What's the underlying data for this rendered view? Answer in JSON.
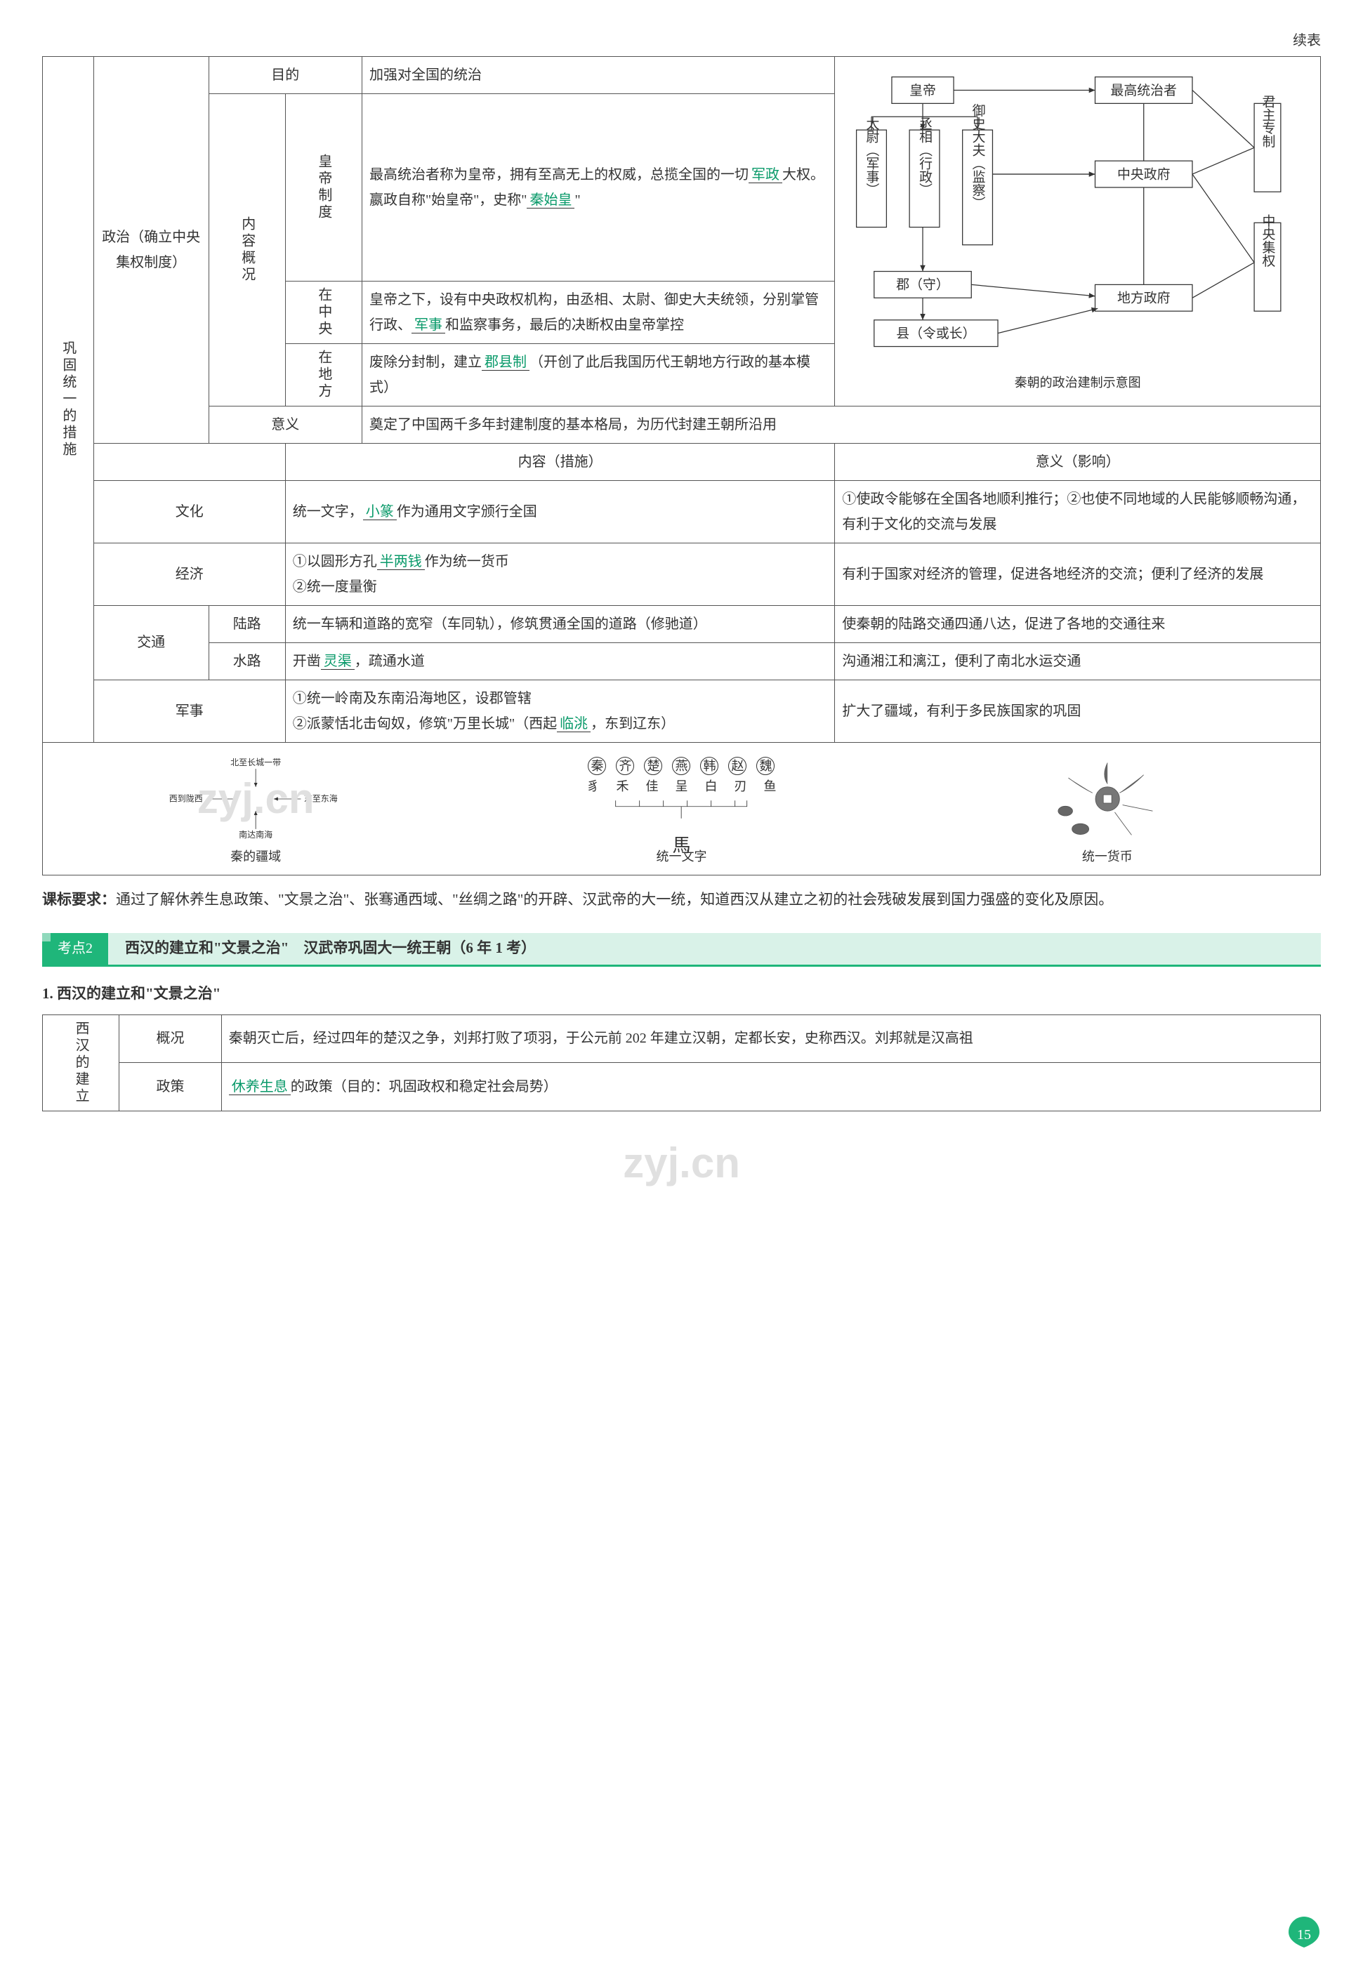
{
  "continue_label": "续表",
  "main_row_label": "巩固统一的措施",
  "politics": {
    "label": "政治（确立中央集权制度）",
    "purpose_label": "目的",
    "purpose_text": "加强对全国的统治",
    "content_label": "内容概况",
    "emperor_label": "皇帝制度",
    "emperor_text_1": "最高统治者称为皇帝，拥有至高无上的权威，总揽全国的一切",
    "emperor_fill_1": "军政",
    "emperor_text_2": "大权。嬴政自称\"始皇帝\"，史称\"",
    "emperor_fill_2": "秦始皇",
    "emperor_text_3": "\"",
    "central_label": "在中央",
    "central_text_1": "皇帝之下，设有中央政权机构，由丞相、太尉、御史大夫统领，分别掌管行政、",
    "central_fill": "军事",
    "central_text_2": "和监察事务，最后的决断权由皇帝掌控",
    "local_label": "在地方",
    "local_text_1": "废除分封制，建立",
    "local_fill": "郡县制",
    "local_text_2": "（开创了此后我国历代王朝地方行政的基本模式）",
    "meaning_label": "意义",
    "meaning_text": "奠定了中国两千多年封建制度的基本格局，为历代封建王朝所沿用",
    "diagram": {
      "nodes": {
        "emperor": "皇帝",
        "top_ruler": "最高统治者",
        "taiwei": "太尉（军事）",
        "chengxiang": "丞相（行政）",
        "yushi": "御史大夫（监察）",
        "central_gov": "中央政府",
        "junshou": "郡（守）",
        "xianling": "县（令或长）",
        "local_gov": "地方政府",
        "right1": "君主专制",
        "right2": "中央集权"
      },
      "caption": "秦朝的政治建制示意图"
    }
  },
  "table2": {
    "header_content": "内容（措施）",
    "header_meaning": "意义（影响）",
    "culture_label": "文化",
    "culture_content_1": "统一文字，",
    "culture_fill": "小篆",
    "culture_content_2": "作为通用文字颁行全国",
    "culture_meaning": "①使政令能够在全国各地顺利推行；②也使不同地域的人民能够顺畅沟通，有利于文化的交流与发展",
    "economy_label": "经济",
    "economy_content_1": "①以圆形方孔",
    "economy_fill": "半两钱",
    "economy_content_2": "作为统一货币\n②统一度量衡",
    "economy_meaning": "有利于国家对经济的管理，促进各地经济的交流；便利了经济的发展",
    "transport_label": "交通",
    "land_label": "陆路",
    "land_content": "统一车辆和道路的宽窄（车同轨），修筑贯通全国的道路（修驰道）",
    "land_meaning": "使秦朝的陆路交通四通八达，促进了各地的交通往来",
    "water_label": "水路",
    "water_content_1": "开凿",
    "water_fill": "灵渠",
    "water_content_2": "，疏通水道",
    "water_meaning": "沟通湘江和漓江，便利了南北水运交通",
    "military_label": "军事",
    "military_content_1": "①统一岭南及东南沿海地区，设郡管辖\n②派蒙恬北击匈奴，修筑\"万里长城\"（西起",
    "military_fill": "临洮",
    "military_content_2": "，东到辽东）",
    "military_meaning": "扩大了疆域，有利于多民族国家的巩固"
  },
  "illus": {
    "map": {
      "north": "北至长城一带",
      "south": "南达南海",
      "west": "西到陇西",
      "east": "东至东海",
      "caption": "秦的疆域"
    },
    "script": {
      "states": [
        "秦",
        "齐",
        "楚",
        "燕",
        "韩",
        "赵",
        "魏"
      ],
      "glyphs": [
        "豸",
        "禾",
        "佳",
        "呈",
        "白",
        "刃",
        "鱼"
      ],
      "unified": "馬",
      "caption": "统一文字"
    },
    "coin": {
      "caption": "统一货币"
    },
    "watermark": "zyj.cn"
  },
  "standard": {
    "label": "课标要求：",
    "text": "通过了解休养生息政策、\"文景之治\"、张骞通西域、\"丝绸之路\"的开辟、汉武帝的大一统，知道西汉从建立之初的社会残破发展到国力强盛的变化及原因。"
  },
  "exam_point": {
    "tag": "考点2",
    "title": "西汉的建立和\"文景之治\"　汉武帝巩固大一统王朝（6 年 1 考）"
  },
  "section1_title": "1. 西汉的建立和\"文景之治\"",
  "xihan": {
    "row_label": "西汉的建立",
    "overview_label": "概况",
    "overview_text": "秦朝灭亡后，经过四年的楚汉之争，刘邦打败了项羽，于公元前 202 年建立汉朝，定都长安，史称西汉。刘邦就是汉高祖",
    "policy_label": "政策",
    "policy_fill": "休养生息",
    "policy_text": "的政策（目的：巩固政权和稳定社会局势）"
  },
  "page_number": "15"
}
